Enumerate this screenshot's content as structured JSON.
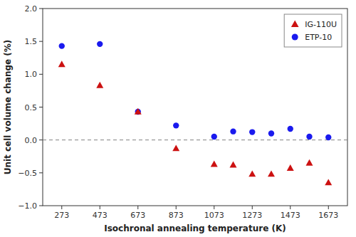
{
  "chart_data": {
    "type": "scatter",
    "xlabel": "Isochronal annealing temperature (K)",
    "ylabel": "Unit cell volume change (%)",
    "xlim": [
      173,
      1773
    ],
    "ylim": [
      -1.0,
      2.0
    ],
    "xticks": [
      273,
      473,
      673,
      873,
      1073,
      1273,
      1473,
      1673
    ],
    "yticks": [
      {
        "value": -1.0,
        "label": "−1.0"
      },
      {
        "value": -0.5,
        "label": "−0.5"
      },
      {
        "value": 0.0,
        "label": "0.0"
      },
      {
        "value": 0.5,
        "label": "0.5"
      },
      {
        "value": 1.0,
        "label": "1.0"
      },
      {
        "value": 1.5,
        "label": "1.5"
      },
      {
        "value": 2.0,
        "label": "2.0"
      }
    ],
    "grid": false,
    "legend": "upper right",
    "reference_line": {
      "value": 0.0,
      "line_style": "dashed",
      "color": "gray"
    },
    "series": [
      {
        "name": "ETP-10",
        "color": "#1a1aee",
        "marker": "circle",
        "x": [
          273,
          473,
          673,
          873,
          1073,
          1173,
          1273,
          1373,
          1473,
          1573,
          1673
        ],
        "values": [
          1.43,
          1.46,
          0.43,
          0.22,
          0.05,
          0.13,
          0.12,
          0.1,
          0.17,
          0.05,
          0.04
        ]
      },
      {
        "name": "IG-110U",
        "color": "#cc1111",
        "marker": "triangle",
        "x": [
          273,
          473,
          673,
          873,
          1073,
          1173,
          1273,
          1373,
          1473,
          1573,
          1673
        ],
        "values": [
          1.15,
          0.83,
          0.43,
          -0.13,
          -0.37,
          -0.38,
          -0.52,
          -0.52,
          -0.43,
          -0.35,
          -0.65
        ]
      }
    ]
  }
}
